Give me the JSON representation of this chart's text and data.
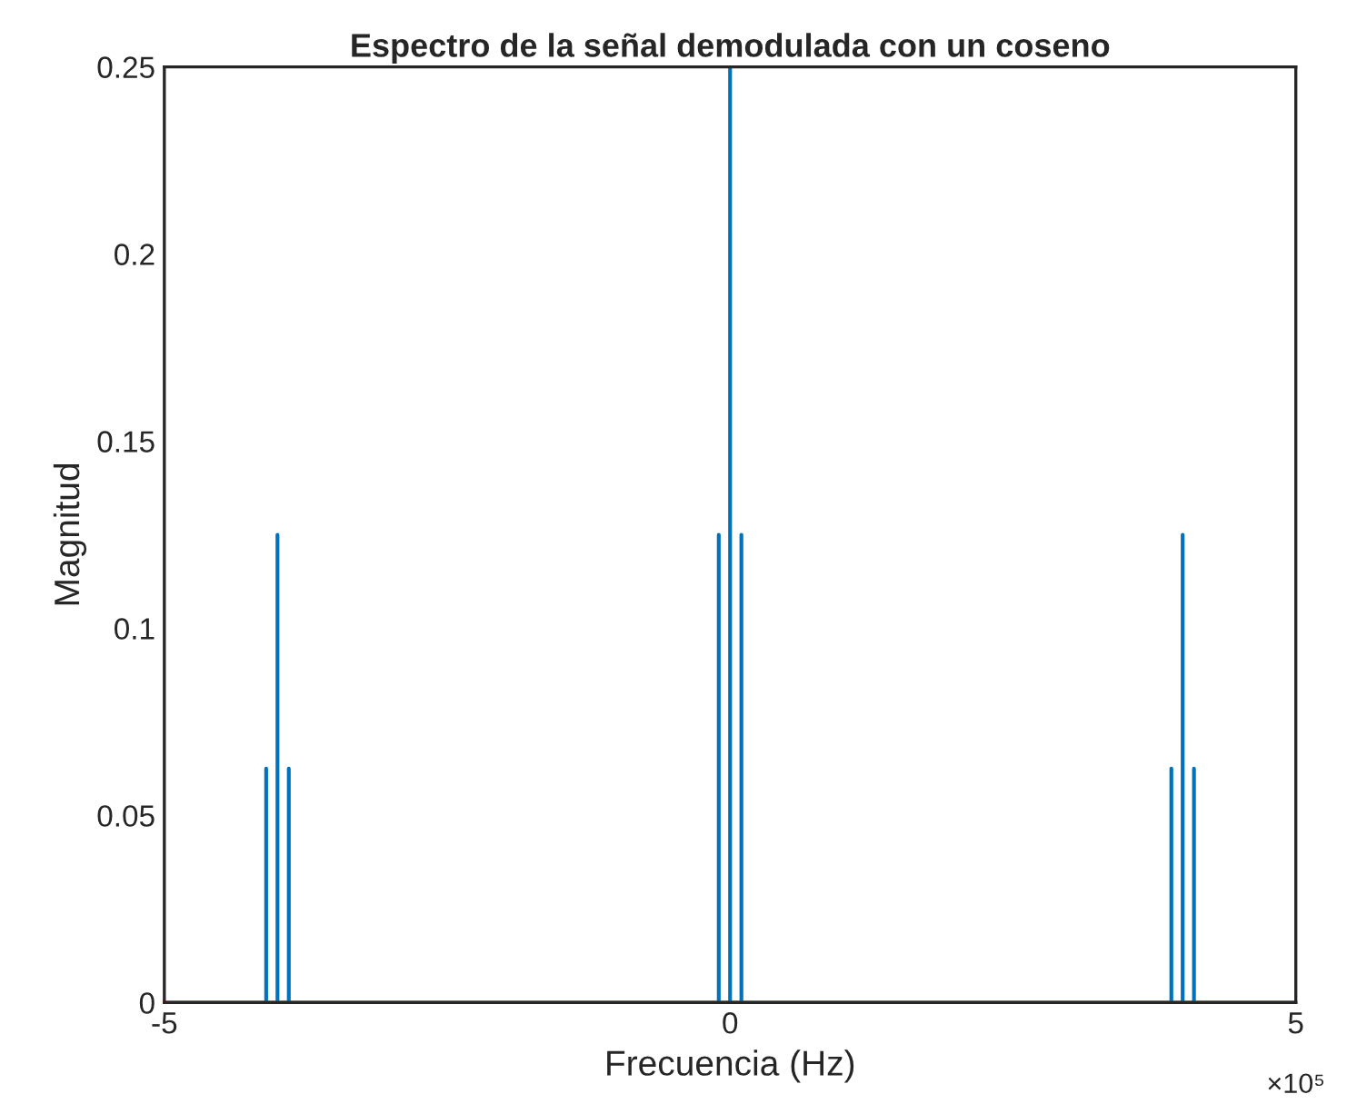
{
  "chart_data": {
    "type": "line",
    "title": "Espectro de la señal demodulada con un coseno",
    "xlabel": "Frecuencia (Hz)",
    "ylabel": "Magnitud",
    "annotations": [
      "×10⁵"
    ],
    "series": [
      {
        "color": "#0072bd",
        "x": [
          -5,
          -4.1,
          -4.1,
          -4.1,
          -4,
          -4,
          -4,
          -3.9,
          -3.9,
          -3.9,
          -0.1,
          -0.1,
          -0.1,
          0,
          0,
          0,
          0.1,
          0.1,
          0.1,
          3.9,
          3.9,
          3.9,
          4,
          4,
          4,
          4.1,
          4.1,
          4.1,
          5
        ],
        "values": [
          0,
          0,
          0.0625,
          0,
          0,
          0.125,
          0,
          0,
          0.0625,
          0,
          0,
          0.125,
          0,
          0,
          0.25,
          0,
          0,
          0.125,
          0,
          0,
          0.0625,
          0,
          0,
          0.125,
          0,
          0,
          0.0625,
          0,
          0
        ]
      }
    ],
    "xlim": [
      -5,
      5
    ],
    "xticks": [
      -5,
      0,
      5
    ],
    "ylim": [
      0,
      0.25
    ],
    "yticks": [
      0,
      0.05,
      0.1,
      0.15,
      0.2,
      0.25
    ],
    "grid": false,
    "legend": false,
    "marker": "none",
    "line_style": "solid"
  }
}
